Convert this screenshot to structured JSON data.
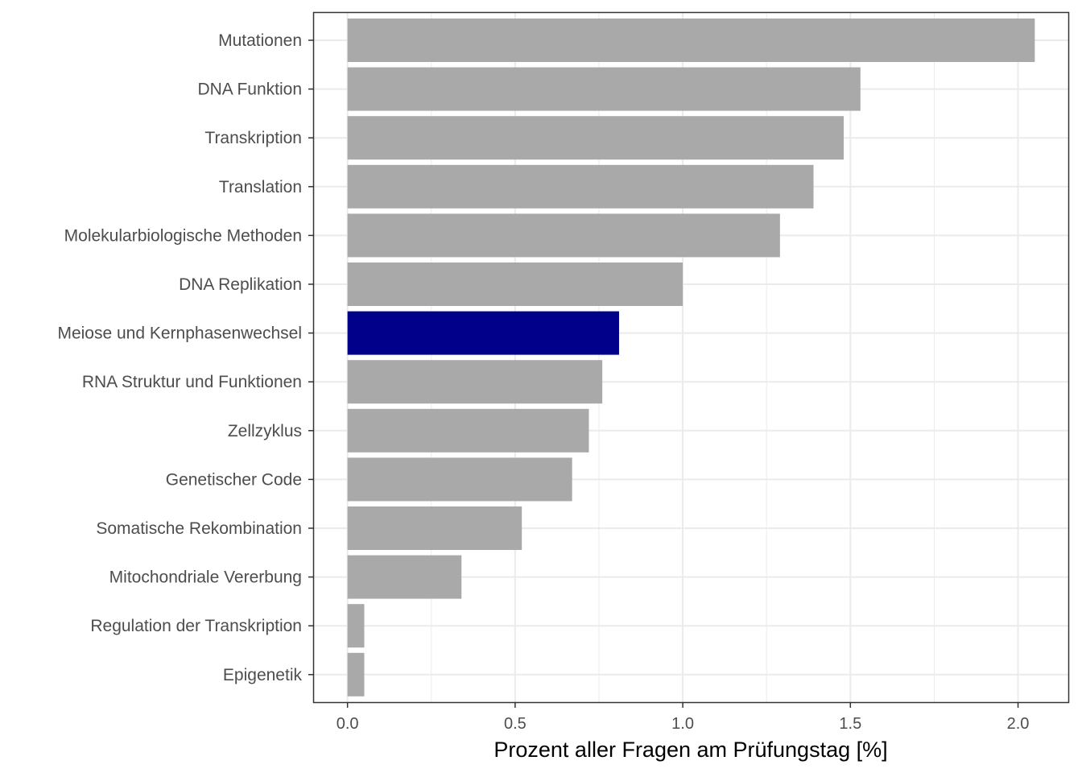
{
  "chart_data": {
    "type": "bar",
    "orientation": "horizontal",
    "categories": [
      "Mutationen",
      "DNA Funktion",
      "Transkription",
      "Translation",
      "Molekularbiologische Methoden",
      "DNA Replikation",
      "Meiose und Kernphasenwechsel",
      "RNA Struktur und Funktionen",
      "Zellzyklus",
      "Genetischer Code",
      "Somatische Rekombination",
      "Mitochondriale Vererbung",
      "Regulation der Transkription",
      "Epigenetik"
    ],
    "values": [
      2.05,
      1.53,
      1.48,
      1.39,
      1.29,
      1.0,
      0.81,
      0.76,
      0.72,
      0.67,
      0.52,
      0.34,
      0.05,
      0.05
    ],
    "highlight": "Meiose und Kernphasenwechsel",
    "colors": {
      "default": "#a9a9a9",
      "highlight": "#00008b",
      "grid": "#ebebeb",
      "border": "#333333"
    },
    "xlabel": "Prozent aller Fragen am Prüfungstag [%]",
    "ylabel": "",
    "xlim": [
      -0.1,
      2.15
    ],
    "xticks": [
      0.0,
      0.5,
      1.0,
      1.5,
      2.0
    ],
    "xtick_labels": [
      "0.0",
      "0.5",
      "1.0",
      "1.5",
      "2.0"
    ],
    "grid": true
  }
}
